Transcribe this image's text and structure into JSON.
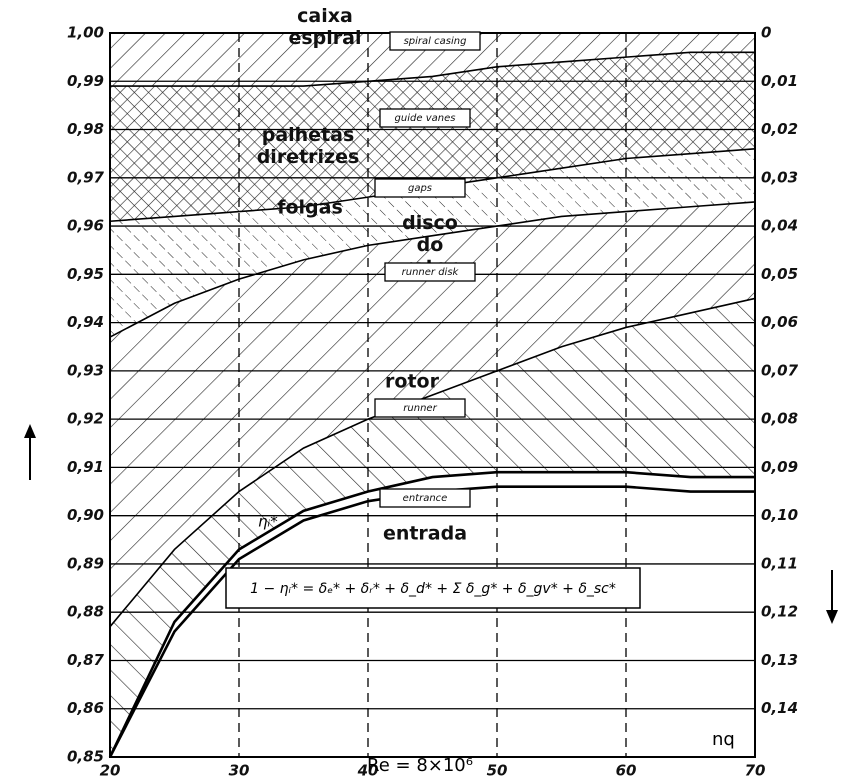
{
  "chart_data": {
    "type": "stacked-bands",
    "x": [
      20,
      25,
      30,
      35,
      40,
      45,
      50,
      55,
      60,
      65,
      70
    ],
    "xlim": [
      20,
      70
    ],
    "xticks": [
      20,
      30,
      40,
      50,
      60,
      70
    ],
    "ylim": [
      0.85,
      1.0
    ],
    "yticks": [
      {
        "value": 1.0,
        "label": "1,00"
      },
      {
        "value": 0.99,
        "label": "0,99"
      },
      {
        "value": 0.98,
        "label": "0,98"
      },
      {
        "value": 0.97,
        "label": "0,97"
      },
      {
        "value": 0.96,
        "label": "0,96"
      },
      {
        "value": 0.95,
        "label": "0,95"
      },
      {
        "value": 0.94,
        "label": "0,94"
      },
      {
        "value": 0.93,
        "label": "0,93"
      },
      {
        "value": 0.92,
        "label": "0,92"
      },
      {
        "value": 0.91,
        "label": "0,91"
      },
      {
        "value": 0.9,
        "label": "0,90"
      },
      {
        "value": 0.89,
        "label": "0,89"
      },
      {
        "value": 0.88,
        "label": "0,88"
      },
      {
        "value": 0.87,
        "label": "0,87"
      },
      {
        "value": 0.86,
        "label": "0,86"
      },
      {
        "value": 0.85,
        "label": "0,85"
      }
    ],
    "y2lim": [
      0,
      0.15
    ],
    "y2_inverted": true,
    "y2ticks": [
      0,
      {
        "value": 0.01,
        "label": "0,01"
      },
      {
        "value": 0.02,
        "label": "0,02"
      },
      {
        "value": 0.03,
        "label": "0,03"
      },
      {
        "value": 0.04,
        "label": "0,04"
      },
      {
        "value": 0.05,
        "label": "0,05"
      },
      {
        "value": 0.06,
        "label": "0,06"
      },
      {
        "value": 0.07,
        "label": "0,07"
      },
      {
        "value": 0.08,
        "label": "0,08"
      },
      {
        "value": 0.09,
        "label": "0,09"
      },
      {
        "value": 0.1,
        "label": "0,10"
      },
      {
        "value": 0.11,
        "label": "0,11"
      },
      {
        "value": 0.12,
        "label": "0,12"
      },
      {
        "value": 0.13,
        "label": "0,13"
      },
      {
        "value": 0.14,
        "label": "0,14"
      }
    ],
    "grid": true,
    "series": [
      {
        "name": "caixa espiral",
        "label_en": "spiral casing",
        "values": [
          0.989,
          0.989,
          0.989,
          0.989,
          0.99,
          0.991,
          0.993,
          0.994,
          0.995,
          0.996,
          0.996
        ]
      },
      {
        "name": "palhetas diretrizes",
        "label_en": "guide vanes",
        "values": [
          0.961,
          0.962,
          0.963,
          0.964,
          0.966,
          0.968,
          0.97,
          0.972,
          0.974,
          0.975,
          0.976
        ]
      },
      {
        "name": "folgas",
        "label_en": "gaps",
        "values": [
          0.937,
          0.944,
          0.949,
          0.953,
          0.956,
          0.958,
          0.96,
          0.962,
          0.963,
          0.964,
          0.965
        ]
      },
      {
        "name": "disco do rotor",
        "label_en": "runner disk",
        "values": [
          0.877,
          0.893,
          0.905,
          0.914,
          0.92,
          0.925,
          0.93,
          0.935,
          0.939,
          0.942,
          0.945
        ]
      },
      {
        "name": "rotor",
        "label_en": "runner",
        "values": [
          0.85,
          0.878,
          0.893,
          0.901,
          0.905,
          0.908,
          0.909,
          0.909,
          0.909,
          0.908,
          0.908
        ]
      },
      {
        "name": "entrada",
        "label_en": "entrance",
        "values": [
          0.85,
          0.876,
          0.891,
          0.899,
          0.903,
          0.905,
          0.906,
          0.906,
          0.906,
          0.905,
          0.905
        ]
      }
    ],
    "curve_label": "ηᵢ*",
    "equation": "1 − ηᵢ* = δₑ* + δᵣ* + δ_d* + Σ δ_g* + δ_gv* + δ_sc*",
    "x_label": "Re = 8×10⁶",
    "x_axis_name": "nq"
  }
}
